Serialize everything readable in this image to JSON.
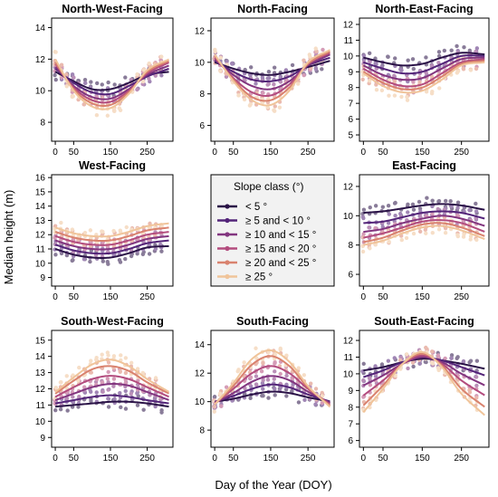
{
  "figure": {
    "ylabel": "Median height (m)",
    "xlabel": "Day of the Year (DOY)"
  },
  "legend": {
    "title": "Slope class (°)",
    "entries": [
      "< 5 °",
      "≥ 5 and  < 10 °",
      "≥ 10 and  < 15 °",
      "≥ 15 and  < 20 °",
      "≥ 20 and  < 25 °",
      "≥ 25 °"
    ]
  },
  "colors": {
    "series": [
      "#2a1247",
      "#532479",
      "#82357f",
      "#b34c7e",
      "#d9826e",
      "#f0c49a"
    ],
    "frame": "#000000",
    "legend_bg": "#f2f2f2"
  },
  "chart_data": [
    {
      "type": "line",
      "title": "North-West-Facing",
      "xticks": [
        0,
        50,
        150,
        250
      ],
      "xlim": [
        -10,
        320
      ],
      "yticks": [
        8,
        10,
        12,
        14
      ],
      "ylim": [
        6.8,
        14.6
      ],
      "curve_x": [
        0,
        50,
        100,
        150,
        200,
        250,
        310
      ],
      "series": [
        {
          "values": [
            11.2,
            10.6,
            10.1,
            10.1,
            10.5,
            11.0,
            11.2
          ]
        },
        {
          "values": [
            11.4,
            10.5,
            9.9,
            9.8,
            10.3,
            10.9,
            11.4
          ]
        },
        {
          "values": [
            11.5,
            10.3,
            9.6,
            9.5,
            10.1,
            11.0,
            11.6
          ]
        },
        {
          "values": [
            11.7,
            10.2,
            9.4,
            9.3,
            10.0,
            11.1,
            11.8
          ]
        },
        {
          "values": [
            11.8,
            10.1,
            9.2,
            9.1,
            9.9,
            11.2,
            11.9
          ]
        },
        {
          "values": [
            12.0,
            10.0,
            9.0,
            8.9,
            9.8,
            11.3,
            12.0
          ]
        }
      ]
    },
    {
      "type": "line",
      "title": "North-Facing",
      "xticks": [
        0,
        50,
        150,
        250
      ],
      "xlim": [
        -10,
        320
      ],
      "yticks": [
        6,
        8,
        10,
        12
      ],
      "ylim": [
        5.0,
        12.8
      ],
      "curve_x": [
        0,
        50,
        100,
        150,
        200,
        250,
        310
      ],
      "series": [
        {
          "values": [
            10.0,
            9.6,
            9.3,
            9.2,
            9.4,
            9.7,
            10.1
          ]
        },
        {
          "values": [
            10.1,
            9.4,
            8.9,
            8.8,
            9.1,
            9.8,
            10.3
          ]
        },
        {
          "values": [
            10.2,
            9.2,
            8.5,
            8.3,
            8.8,
            9.8,
            10.5
          ]
        },
        {
          "values": [
            10.3,
            9.0,
            8.1,
            7.9,
            8.6,
            9.9,
            10.6
          ]
        },
        {
          "values": [
            10.4,
            8.9,
            7.8,
            7.6,
            8.4,
            9.9,
            10.7
          ]
        },
        {
          "values": [
            10.5,
            8.8,
            7.6,
            7.3,
            8.2,
            10.0,
            10.8
          ]
        }
      ]
    },
    {
      "type": "line",
      "title": "North-East-Facing",
      "xticks": [
        0,
        50,
        150,
        250
      ],
      "xlim": [
        -10,
        320
      ],
      "yticks": [
        5,
        6,
        7,
        8,
        9,
        10,
        11,
        12
      ],
      "ylim": [
        4.6,
        12.4
      ],
      "curve_x": [
        0,
        50,
        100,
        150,
        200,
        250,
        310
      ],
      "series": [
        {
          "values": [
            9.9,
            9.6,
            9.4,
            9.5,
            9.9,
            10.2,
            10.1
          ]
        },
        {
          "values": [
            9.6,
            9.2,
            8.9,
            9.0,
            9.5,
            10.0,
            10.0
          ]
        },
        {
          "values": [
            9.4,
            8.8,
            8.5,
            8.6,
            9.2,
            9.8,
            9.9
          ]
        },
        {
          "values": [
            9.2,
            8.5,
            8.1,
            8.2,
            8.9,
            9.6,
            9.8
          ]
        },
        {
          "values": [
            9.0,
            8.3,
            7.9,
            8.0,
            8.7,
            9.5,
            9.7
          ]
        },
        {
          "values": [
            8.9,
            8.1,
            7.7,
            7.8,
            8.5,
            9.4,
            9.6
          ]
        }
      ]
    },
    {
      "type": "line",
      "title": "West-Facing",
      "xticks": [
        0,
        50,
        150,
        250
      ],
      "xlim": [
        -10,
        320
      ],
      "yticks": [
        9,
        10,
        11,
        12,
        13,
        14,
        15,
        16
      ],
      "ylim": [
        8.4,
        16.2
      ],
      "curve_x": [
        0,
        50,
        100,
        150,
        200,
        250,
        310
      ],
      "series": [
        {
          "values": [
            11.0,
            10.6,
            10.4,
            10.4,
            10.7,
            11.1,
            11.2
          ]
        },
        {
          "values": [
            11.3,
            10.9,
            10.7,
            10.7,
            11.0,
            11.4,
            11.6
          ]
        },
        {
          "values": [
            11.6,
            11.2,
            11.0,
            11.0,
            11.3,
            11.7,
            11.9
          ]
        },
        {
          "values": [
            11.9,
            11.5,
            11.3,
            11.3,
            11.6,
            12.0,
            12.2
          ]
        },
        {
          "values": [
            12.2,
            11.8,
            11.6,
            11.6,
            11.9,
            12.3,
            12.5
          ]
        },
        {
          "values": [
            12.5,
            12.1,
            11.9,
            11.9,
            12.2,
            12.6,
            12.8
          ]
        }
      ]
    },
    {
      "type": "line",
      "title": "East-Facing",
      "xticks": [
        0,
        50,
        150,
        250
      ],
      "xlim": [
        -10,
        320
      ],
      "yticks": [
        6,
        8,
        10,
        12
      ],
      "ylim": [
        5.2,
        12.8
      ],
      "curve_x": [
        0,
        50,
        100,
        150,
        200,
        250,
        310
      ],
      "series": [
        {
          "values": [
            10.2,
            10.3,
            10.5,
            10.7,
            10.8,
            10.7,
            10.4
          ]
        },
        {
          "values": [
            9.5,
            9.6,
            9.9,
            10.2,
            10.3,
            10.2,
            9.8
          ]
        },
        {
          "values": [
            8.9,
            9.1,
            9.5,
            9.8,
            10.0,
            9.8,
            9.3
          ]
        },
        {
          "values": [
            8.5,
            8.8,
            9.2,
            9.6,
            9.7,
            9.5,
            8.9
          ]
        },
        {
          "values": [
            8.2,
            8.5,
            9.0,
            9.4,
            9.5,
            9.2,
            8.6
          ]
        },
        {
          "values": [
            8.0,
            8.3,
            8.8,
            9.2,
            9.3,
            9.0,
            8.4
          ]
        }
      ]
    },
    {
      "type": "line",
      "title": "South-West-Facing",
      "xticks": [
        0,
        50,
        150,
        250
      ],
      "xlim": [
        -10,
        320
      ],
      "yticks": [
        9,
        10,
        11,
        12,
        13,
        14,
        15
      ],
      "ylim": [
        8.4,
        15.6
      ],
      "curve_x": [
        0,
        50,
        100,
        150,
        200,
        250,
        310
      ],
      "series": [
        {
          "values": [
            10.9,
            11.0,
            11.1,
            11.2,
            11.2,
            11.1,
            10.9
          ]
        },
        {
          "values": [
            11.1,
            11.3,
            11.5,
            11.6,
            11.5,
            11.3,
            11.1
          ]
        },
        {
          "values": [
            11.3,
            11.7,
            12.1,
            12.3,
            12.2,
            11.8,
            11.3
          ]
        },
        {
          "values": [
            11.5,
            12.1,
            12.6,
            12.8,
            12.6,
            12.1,
            11.5
          ]
        },
        {
          "values": [
            11.7,
            12.5,
            13.2,
            13.4,
            13.1,
            12.4,
            11.7
          ]
        },
        {
          "values": [
            11.8,
            12.7,
            13.5,
            13.8,
            13.4,
            12.6,
            11.8
          ]
        }
      ]
    },
    {
      "type": "line",
      "title": "South-Facing",
      "xticks": [
        0,
        50,
        150,
        250
      ],
      "xlim": [
        -10,
        320
      ],
      "yticks": [
        8,
        10,
        12,
        14
      ],
      "ylim": [
        6.8,
        15.0
      ],
      "curve_x": [
        0,
        50,
        100,
        150,
        200,
        250,
        310
      ],
      "series": [
        {
          "values": [
            10.0,
            10.2,
            10.5,
            10.7,
            10.6,
            10.3,
            10.0
          ]
        },
        {
          "values": [
            10.0,
            10.4,
            10.9,
            11.2,
            11.0,
            10.5,
            10.0
          ]
        },
        {
          "values": [
            9.9,
            10.6,
            11.4,
            11.8,
            11.5,
            10.7,
            9.9
          ]
        },
        {
          "values": [
            9.9,
            10.9,
            12.0,
            12.5,
            12.0,
            10.9,
            9.8
          ]
        },
        {
          "values": [
            9.8,
            11.1,
            12.6,
            13.2,
            12.5,
            11.0,
            9.7
          ]
        },
        {
          "values": [
            9.8,
            11.3,
            13.0,
            13.6,
            12.8,
            11.1,
            9.6
          ]
        }
      ]
    },
    {
      "type": "line",
      "title": "South-East-Facing",
      "xticks": [
        0,
        50,
        150,
        250
      ],
      "xlim": [
        -10,
        320
      ],
      "yticks": [
        6,
        7,
        8,
        9,
        10,
        11,
        12
      ],
      "ylim": [
        5.6,
        12.6
      ],
      "curve_x": [
        0,
        50,
        100,
        150,
        200,
        250,
        310
      ],
      "series": [
        {
          "values": [
            10.2,
            10.4,
            10.7,
            10.9,
            10.8,
            10.6,
            10.3
          ]
        },
        {
          "values": [
            9.8,
            10.2,
            10.7,
            11.0,
            10.8,
            10.4,
            9.9
          ]
        },
        {
          "values": [
            9.3,
            9.9,
            10.6,
            11.0,
            10.7,
            10.0,
            9.3
          ]
        },
        {
          "values": [
            8.7,
            9.6,
            10.6,
            11.1,
            10.6,
            9.6,
            8.7
          ]
        },
        {
          "values": [
            8.1,
            9.3,
            10.6,
            11.2,
            10.5,
            9.1,
            8.0
          ]
        },
        {
          "values": [
            7.7,
            9.1,
            10.6,
            11.3,
            10.4,
            8.8,
            7.5
          ]
        }
      ]
    }
  ]
}
